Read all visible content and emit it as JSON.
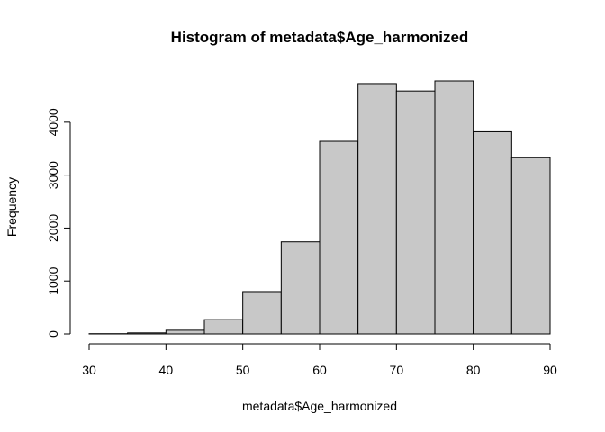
{
  "chart_data": {
    "type": "bar",
    "title": "Histogram of metadata$Age_harmonized",
    "xlabel": "metadata$Age_harmonized",
    "ylabel": "Frequency",
    "bins": [
      {
        "from": 30,
        "to": 35,
        "value": 5
      },
      {
        "from": 35,
        "to": 40,
        "value": 20
      },
      {
        "from": 40,
        "to": 45,
        "value": 70
      },
      {
        "from": 45,
        "to": 50,
        "value": 270
      },
      {
        "from": 50,
        "to": 55,
        "value": 800
      },
      {
        "from": 55,
        "to": 60,
        "value": 1740
      },
      {
        "from": 60,
        "to": 65,
        "value": 3640
      },
      {
        "from": 65,
        "to": 70,
        "value": 4730
      },
      {
        "from": 70,
        "to": 75,
        "value": 4590
      },
      {
        "from": 75,
        "to": 80,
        "value": 4780
      },
      {
        "from": 80,
        "to": 85,
        "value": 3820
      },
      {
        "from": 85,
        "to": 90,
        "value": 3330
      }
    ],
    "xlim": [
      30,
      90
    ],
    "ylim": [
      0,
      4780
    ],
    "x_ticks": [
      30,
      40,
      50,
      60,
      70,
      80,
      90
    ],
    "y_ticks": [
      0,
      1000,
      2000,
      3000,
      4000
    ],
    "bar_color": "#c8c8c8",
    "grid": false,
    "legend": "none"
  }
}
